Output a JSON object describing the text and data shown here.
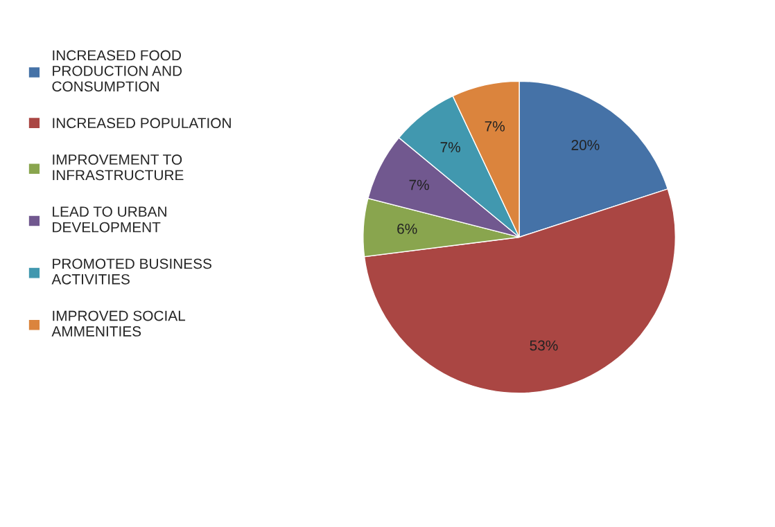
{
  "chart_data": {
    "type": "pie",
    "categories": [
      "INCREASED FOOD\nPRODUCTION AND\nCONSUMPTION",
      "INCREASED POPULATION",
      "IMPROVEMENT TO\nINFRASTRUCTURE",
      "LEAD TO URBAN\nDEVELOPMENT",
      "PROMOTED BUSINESS\nACTIVITIES",
      "IMPROVED SOCIAL\nAMMENITIES"
    ],
    "values": [
      20,
      53,
      6,
      7,
      7,
      7
    ],
    "value_labels": [
      "20%",
      "53%",
      "6%",
      "7%",
      "7%",
      "7%"
    ],
    "colors": [
      "#4572a7",
      "#aa4643",
      "#89a54e",
      "#71588f",
      "#4198af",
      "#db843d"
    ],
    "legend": "left"
  }
}
